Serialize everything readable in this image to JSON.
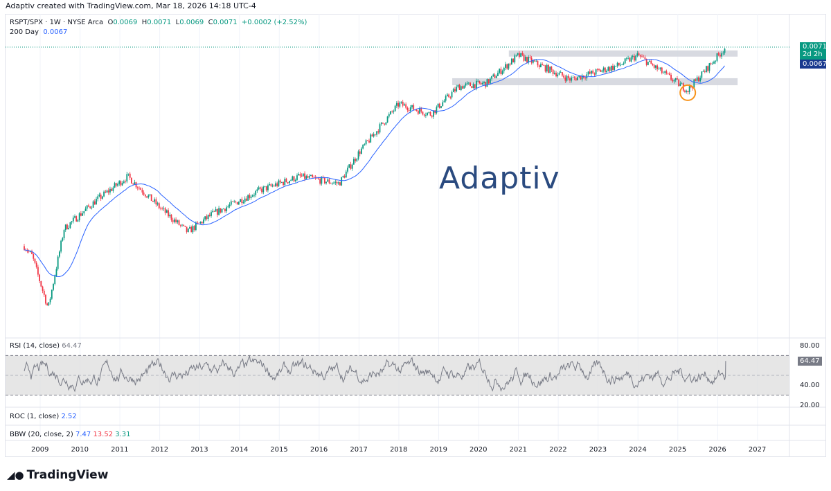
{
  "credit": "Adaptiv created with TradingView.com, Mar 18, 2026 14:18 UTC-4",
  "legend": {
    "symbol": "RSPT/SPX · 1W · NYSE Arca",
    "o": "O",
    "ov": "0.0069",
    "h": "H",
    "hv": "0.0071",
    "l": "L",
    "lv": "0.0069",
    "c": "C",
    "cv": "0.0071",
    "chg": "+0.0002 (+2.52%)",
    "ma_label": "200 Day",
    "ma_value": "0.0067"
  },
  "price_labels": {
    "last": "0.0071",
    "countdown": "2d 2h",
    "ma": "0.0067"
  },
  "watermark": "Adaptiv",
  "rsi": {
    "label": "RSI (14, close)",
    "value": "64.47",
    "ticks": [
      "80.00",
      "40.00",
      "20.00"
    ]
  },
  "roc": {
    "label": "ROC (1, close)",
    "value": "2.52"
  },
  "bbw": {
    "label": "BBW (20, close, 2)",
    "v1": "7.47",
    "v2": "13.52",
    "v3": "3.31"
  },
  "brand": "TradingView",
  "colors": {
    "up": "#089981",
    "down": "#f23645",
    "ma": "#2962ff",
    "zone": "#d1d4dc",
    "circle": "#f7931a"
  },
  "chart_data": {
    "type": "candlestick",
    "title": "RSPT/SPX · 1W · NYSE Arca",
    "x_ticks": [
      "2009",
      "2010",
      "2011",
      "2012",
      "2013",
      "2014",
      "2015",
      "2016",
      "2017",
      "2018",
      "2019",
      "2020",
      "2021",
      "2022",
      "2023",
      "2024",
      "2025",
      "2026",
      "2027"
    ],
    "price_path": [
      [
        2008.6,
        0.0023
      ],
      [
        2008.8,
        0.00206
      ],
      [
        2009.2,
        0.0008
      ],
      [
        2009.6,
        0.00272
      ],
      [
        2010.4,
        0.0034
      ],
      [
        2011.2,
        0.00398
      ],
      [
        2012.0,
        0.00323
      ],
      [
        2012.7,
        0.00264
      ],
      [
        2013.3,
        0.00306
      ],
      [
        2014.5,
        0.00364
      ],
      [
        2015.5,
        0.00398
      ],
      [
        2016.5,
        0.00381
      ],
      [
        2017.0,
        0.00456
      ],
      [
        2018.0,
        0.00573
      ],
      [
        2018.8,
        0.00548
      ],
      [
        2019.5,
        0.00615
      ],
      [
        2020.2,
        0.00623
      ],
      [
        2021.0,
        0.0069
      ],
      [
        2022.3,
        0.00632
      ],
      [
        2023.5,
        0.00665
      ],
      [
        2024.0,
        0.0069
      ],
      [
        2025.25,
        0.00606
      ],
      [
        2026.2,
        0.0071
      ]
    ],
    "last_close": 0.0071,
    "ma200": 0.0067,
    "zones": [
      {
        "from": 2020.76,
        "to": 2026.5,
        "low": 0.00687,
        "high": 0.00702
      },
      {
        "from": 2019.34,
        "to": 2026.5,
        "low": 0.00618,
        "high": 0.00635
      }
    ],
    "circle": {
      "x": 2025.25,
      "y": 0.006
    },
    "rsi_last": 64.47,
    "rsi_bands": [
      30,
      70
    ],
    "rsi_range": [
      20,
      80
    ]
  }
}
